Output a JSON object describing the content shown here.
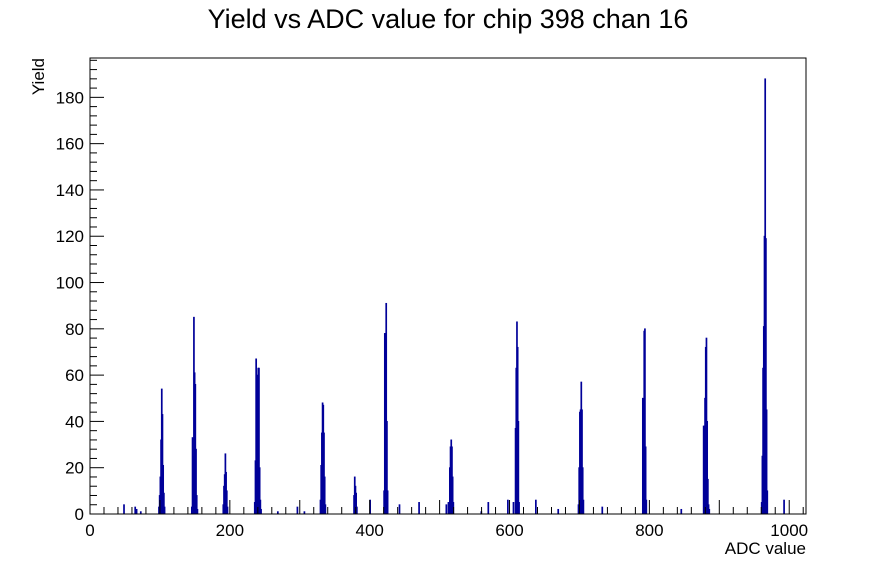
{
  "chart_data": {
    "type": "bar",
    "title": "Yield vs ADC value for chip 398 chan 16",
    "xlabel": "ADC value",
    "ylabel": "Yield",
    "xlim": [
      0,
      1024
    ],
    "ylim": [
      0,
      197
    ],
    "xticks": [
      0,
      200,
      400,
      600,
      800,
      1000
    ],
    "yticks": [
      0,
      20,
      40,
      60,
      80,
      100,
      120,
      140,
      160,
      180
    ],
    "color": "#000099",
    "grid": false,
    "series": [
      {
        "points": [
          [
            48,
            4
          ],
          [
            64,
            3
          ],
          [
            66,
            2
          ],
          [
            72,
            1
          ],
          [
            98,
            3
          ],
          [
            99,
            8
          ],
          [
            100,
            16
          ],
          [
            101,
            32
          ],
          [
            102,
            54
          ],
          [
            103,
            43
          ],
          [
            104,
            21
          ],
          [
            105,
            9
          ],
          [
            106,
            3
          ],
          [
            145,
            3
          ],
          [
            146,
            33
          ],
          [
            147,
            25
          ],
          [
            148,
            85
          ],
          [
            149,
            61
          ],
          [
            150,
            56
          ],
          [
            151,
            28
          ],
          [
            152,
            8
          ],
          [
            153,
            2
          ],
          [
            190,
            4
          ],
          [
            191,
            12
          ],
          [
            192,
            17
          ],
          [
            193,
            26
          ],
          [
            194,
            18
          ],
          [
            195,
            10
          ],
          [
            196,
            3
          ],
          [
            235,
            5
          ],
          [
            236,
            23
          ],
          [
            237,
            67
          ],
          [
            238,
            60
          ],
          [
            239,
            50
          ],
          [
            240,
            63
          ],
          [
            241,
            63
          ],
          [
            242,
            20
          ],
          [
            243,
            6
          ],
          [
            244,
            2
          ],
          [
            268,
            1
          ],
          [
            296,
            3
          ],
          [
            306,
            1
          ],
          [
            329,
            6
          ],
          [
            330,
            21
          ],
          [
            331,
            35
          ],
          [
            332,
            48
          ],
          [
            333,
            47
          ],
          [
            334,
            35
          ],
          [
            335,
            16
          ],
          [
            336,
            4
          ],
          [
            377,
            8
          ],
          [
            378,
            16
          ],
          [
            379,
            12
          ],
          [
            380,
            9
          ],
          [
            381,
            3
          ],
          [
            400,
            6
          ],
          [
            420,
            10
          ],
          [
            421,
            78
          ],
          [
            422,
            78
          ],
          [
            423,
            91
          ],
          [
            424,
            40
          ],
          [
            425,
            10
          ],
          [
            442,
            4
          ],
          [
            470,
            5
          ],
          [
            509,
            4
          ],
          [
            512,
            5
          ],
          [
            514,
            20
          ],
          [
            515,
            29
          ],
          [
            516,
            32
          ],
          [
            517,
            29
          ],
          [
            518,
            16
          ],
          [
            519,
            5
          ],
          [
            559,
            1
          ],
          [
            569,
            5
          ],
          [
            597,
            6
          ],
          [
            605,
            5
          ],
          [
            608,
            37
          ],
          [
            609,
            63
          ],
          [
            610,
            83
          ],
          [
            611,
            72
          ],
          [
            612,
            40
          ],
          [
            613,
            5
          ],
          [
            637,
            6
          ],
          [
            669,
            2
          ],
          [
            698,
            4
          ],
          [
            699,
            20
          ],
          [
            700,
            44
          ],
          [
            701,
            45
          ],
          [
            702,
            57
          ],
          [
            703,
            45
          ],
          [
            704,
            20
          ],
          [
            705,
            6
          ],
          [
            732,
            3
          ],
          [
            790,
            50
          ],
          [
            791,
            49
          ],
          [
            792,
            79
          ],
          [
            793,
            80
          ],
          [
            794,
            29
          ],
          [
            795,
            6
          ],
          [
            845,
            2
          ],
          [
            877,
            38
          ],
          [
            878,
            38
          ],
          [
            879,
            50
          ],
          [
            880,
            72
          ],
          [
            881,
            76
          ],
          [
            882,
            40
          ],
          [
            883,
            15
          ],
          [
            884,
            4
          ],
          [
            885,
            2
          ],
          [
            960,
            5
          ],
          [
            961,
            25
          ],
          [
            962,
            63
          ],
          [
            963,
            81
          ],
          [
            964,
            120
          ],
          [
            965,
            188
          ],
          [
            966,
            119
          ],
          [
            967,
            45
          ],
          [
            968,
            10
          ],
          [
            992,
            6
          ]
        ]
      }
    ]
  }
}
